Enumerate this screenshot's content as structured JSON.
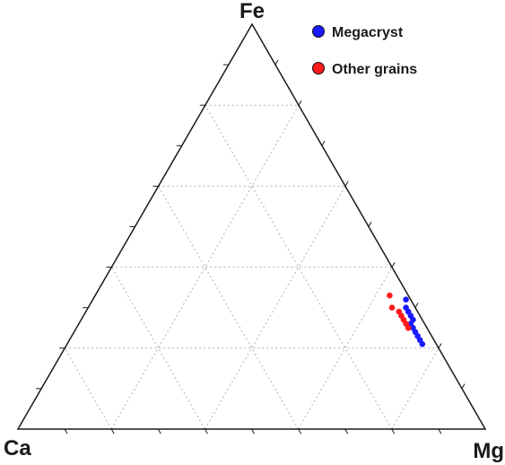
{
  "chart_data": {
    "type": "scatter",
    "subtype": "ternary",
    "vertices": {
      "top": "Fe",
      "left": "Ca",
      "right": "Mg"
    },
    "grid": true,
    "legend_placement": "top-right",
    "series": [
      {
        "name": "Megacryst",
        "color": "#1a1aff",
        "points": [
          {
            "Fe": 0.32,
            "Mg": 0.67,
            "Ca": 0.01
          },
          {
            "Fe": 0.3,
            "Mg": 0.68,
            "Ca": 0.02
          },
          {
            "Fe": 0.29,
            "Mg": 0.69,
            "Ca": 0.02
          },
          {
            "Fe": 0.28,
            "Mg": 0.7,
            "Ca": 0.02
          },
          {
            "Fe": 0.27,
            "Mg": 0.71,
            "Ca": 0.02
          },
          {
            "Fe": 0.26,
            "Mg": 0.71,
            "Ca": 0.03
          },
          {
            "Fe": 0.25,
            "Mg": 0.72,
            "Ca": 0.03
          },
          {
            "Fe": 0.24,
            "Mg": 0.73,
            "Ca": 0.03
          },
          {
            "Fe": 0.23,
            "Mg": 0.74,
            "Ca": 0.03
          },
          {
            "Fe": 0.22,
            "Mg": 0.75,
            "Ca": 0.03
          },
          {
            "Fe": 0.21,
            "Mg": 0.76,
            "Ca": 0.03
          }
        ]
      },
      {
        "name": "Other grains",
        "color": "#ff1a1a",
        "points": [
          {
            "Fe": 0.33,
            "Mg": 0.63,
            "Ca": 0.04
          },
          {
            "Fe": 0.3,
            "Mg": 0.65,
            "Ca": 0.05
          },
          {
            "Fe": 0.29,
            "Mg": 0.67,
            "Ca": 0.04
          },
          {
            "Fe": 0.28,
            "Mg": 0.68,
            "Ca": 0.04
          },
          {
            "Fe": 0.27,
            "Mg": 0.69,
            "Ca": 0.04
          },
          {
            "Fe": 0.26,
            "Mg": 0.7,
            "Ca": 0.04
          },
          {
            "Fe": 0.25,
            "Mg": 0.71,
            "Ca": 0.04
          }
        ]
      }
    ]
  }
}
